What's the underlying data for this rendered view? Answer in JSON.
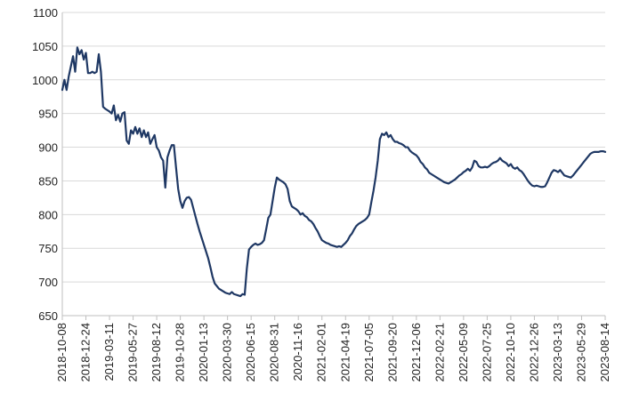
{
  "chart_data": {
    "type": "line",
    "title": "",
    "xlabel": "",
    "ylabel": "",
    "ylim": [
      650,
      1100
    ],
    "yticks": [
      650,
      700,
      750,
      800,
      850,
      900,
      950,
      1000,
      1050,
      1100
    ],
    "xlim": [
      "2018-10-08",
      "2023-08-14"
    ],
    "xticks": [
      "2018-10-08",
      "2018-12-24",
      "2019-03-11",
      "2019-05-27",
      "2019-08-12",
      "2019-10-28",
      "2020-01-13",
      "2020-03-30",
      "2020-06-15",
      "2020-08-31",
      "2020-11-16",
      "2021-02-01",
      "2021-04-19",
      "2021-07-05",
      "2021-09-20",
      "2021-12-06",
      "2022-02-21",
      "2022-05-09",
      "2022-07-25",
      "2022-10-10",
      "2022-12-26",
      "2023-03-13",
      "2023-05-29",
      "2023-08-14"
    ],
    "grid": {
      "horizontal": true,
      "vertical": false
    },
    "series": [
      {
        "color": "#1f3864",
        "points": [
          [
            "2018-10-08",
            985
          ],
          [
            "2018-10-15",
            1000
          ],
          [
            "2018-10-22",
            985
          ],
          [
            "2018-10-29",
            1005
          ],
          [
            "2018-11-05",
            1020
          ],
          [
            "2018-11-12",
            1035
          ],
          [
            "2018-11-19",
            1012
          ],
          [
            "2018-11-26",
            1048
          ],
          [
            "2018-12-03",
            1038
          ],
          [
            "2018-12-10",
            1044
          ],
          [
            "2018-12-17",
            1030
          ],
          [
            "2018-12-24",
            1040
          ],
          [
            "2018-12-31",
            1010
          ],
          [
            "2019-01-07",
            1010
          ],
          [
            "2019-01-14",
            1012
          ],
          [
            "2019-01-21",
            1010
          ],
          [
            "2019-01-28",
            1012
          ],
          [
            "2019-02-04",
            1038
          ],
          [
            "2019-02-11",
            1012
          ],
          [
            "2019-02-18",
            960
          ],
          [
            "2019-02-25",
            957
          ],
          [
            "2019-03-04",
            955
          ],
          [
            "2019-03-11",
            953
          ],
          [
            "2019-03-18",
            950
          ],
          [
            "2019-03-25",
            962
          ],
          [
            "2019-04-01",
            940
          ],
          [
            "2019-04-08",
            948
          ],
          [
            "2019-04-15",
            938
          ],
          [
            "2019-04-22",
            950
          ],
          [
            "2019-04-29",
            952
          ],
          [
            "2019-05-06",
            910
          ],
          [
            "2019-05-13",
            905
          ],
          [
            "2019-05-20",
            925
          ],
          [
            "2019-05-27",
            920
          ],
          [
            "2019-06-03",
            930
          ],
          [
            "2019-06-10",
            920
          ],
          [
            "2019-06-17",
            928
          ],
          [
            "2019-06-24",
            915
          ],
          [
            "2019-07-01",
            925
          ],
          [
            "2019-07-08",
            915
          ],
          [
            "2019-07-15",
            922
          ],
          [
            "2019-07-22",
            905
          ],
          [
            "2019-07-29",
            912
          ],
          [
            "2019-08-05",
            918
          ],
          [
            "2019-08-12",
            900
          ],
          [
            "2019-08-19",
            895
          ],
          [
            "2019-08-26",
            885
          ],
          [
            "2019-09-02",
            880
          ],
          [
            "2019-09-09",
            840
          ],
          [
            "2019-09-16",
            885
          ],
          [
            "2019-09-23",
            895
          ],
          [
            "2019-09-30",
            903
          ],
          [
            "2019-10-07",
            903
          ],
          [
            "2019-10-14",
            870
          ],
          [
            "2019-10-21",
            838
          ],
          [
            "2019-10-28",
            820
          ],
          [
            "2019-11-04",
            810
          ],
          [
            "2019-11-11",
            820
          ],
          [
            "2019-11-18",
            825
          ],
          [
            "2019-11-25",
            826
          ],
          [
            "2019-12-02",
            822
          ],
          [
            "2019-12-09",
            810
          ],
          [
            "2019-12-16",
            798
          ],
          [
            "2019-12-23",
            786
          ],
          [
            "2019-12-30",
            775
          ],
          [
            "2020-01-06",
            765
          ],
          [
            "2020-01-13",
            755
          ],
          [
            "2020-01-20",
            745
          ],
          [
            "2020-01-27",
            735
          ],
          [
            "2020-02-03",
            722
          ],
          [
            "2020-02-10",
            708
          ],
          [
            "2020-02-17",
            698
          ],
          [
            "2020-02-24",
            694
          ],
          [
            "2020-03-02",
            690
          ],
          [
            "2020-03-09",
            688
          ],
          [
            "2020-03-16",
            686
          ],
          [
            "2020-03-23",
            684
          ],
          [
            "2020-03-30",
            683
          ],
          [
            "2020-04-06",
            682
          ],
          [
            "2020-04-13",
            685
          ],
          [
            "2020-04-20",
            682
          ],
          [
            "2020-04-27",
            681
          ],
          [
            "2020-05-04",
            680
          ],
          [
            "2020-05-11",
            679
          ],
          [
            "2020-05-18",
            682
          ],
          [
            "2020-05-25",
            681
          ],
          [
            "2020-06-01",
            720
          ],
          [
            "2020-06-08",
            748
          ],
          [
            "2020-06-15",
            752
          ],
          [
            "2020-06-22",
            755
          ],
          [
            "2020-06-29",
            757
          ],
          [
            "2020-07-06",
            755
          ],
          [
            "2020-07-13",
            756
          ],
          [
            "2020-07-20",
            758
          ],
          [
            "2020-07-27",
            762
          ],
          [
            "2020-08-03",
            778
          ],
          [
            "2020-08-10",
            795
          ],
          [
            "2020-08-17",
            800
          ],
          [
            "2020-08-24",
            820
          ],
          [
            "2020-08-31",
            840
          ],
          [
            "2020-09-07",
            855
          ],
          [
            "2020-09-14",
            852
          ],
          [
            "2020-09-21",
            850
          ],
          [
            "2020-09-28",
            848
          ],
          [
            "2020-10-05",
            845
          ],
          [
            "2020-10-12",
            838
          ],
          [
            "2020-10-19",
            820
          ],
          [
            "2020-10-26",
            812
          ],
          [
            "2020-11-02",
            810
          ],
          [
            "2020-11-09",
            808
          ],
          [
            "2020-11-16",
            805
          ],
          [
            "2020-11-23",
            800
          ],
          [
            "2020-11-30",
            802
          ],
          [
            "2020-12-07",
            798
          ],
          [
            "2020-12-14",
            796
          ],
          [
            "2020-12-21",
            792
          ],
          [
            "2020-12-28",
            790
          ],
          [
            "2021-01-04",
            786
          ],
          [
            "2021-01-11",
            780
          ],
          [
            "2021-01-18",
            775
          ],
          [
            "2021-01-25",
            768
          ],
          [
            "2021-02-01",
            762
          ],
          [
            "2021-02-08",
            760
          ],
          [
            "2021-02-15",
            758
          ],
          [
            "2021-02-22",
            757
          ],
          [
            "2021-03-01",
            755
          ],
          [
            "2021-03-08",
            754
          ],
          [
            "2021-03-15",
            753
          ],
          [
            "2021-03-22",
            752
          ],
          [
            "2021-03-29",
            753
          ],
          [
            "2021-04-05",
            752
          ],
          [
            "2021-04-12",
            755
          ],
          [
            "2021-04-19",
            758
          ],
          [
            "2021-04-26",
            762
          ],
          [
            "2021-05-03",
            768
          ],
          [
            "2021-05-10",
            772
          ],
          [
            "2021-05-17",
            778
          ],
          [
            "2021-05-24",
            783
          ],
          [
            "2021-05-31",
            786
          ],
          [
            "2021-06-07",
            788
          ],
          [
            "2021-06-14",
            790
          ],
          [
            "2021-06-21",
            792
          ],
          [
            "2021-06-28",
            795
          ],
          [
            "2021-07-05",
            800
          ],
          [
            "2021-07-12",
            818
          ],
          [
            "2021-07-19",
            835
          ],
          [
            "2021-07-26",
            855
          ],
          [
            "2021-08-02",
            880
          ],
          [
            "2021-08-09",
            912
          ],
          [
            "2021-08-16",
            920
          ],
          [
            "2021-08-23",
            918
          ],
          [
            "2021-08-30",
            922
          ],
          [
            "2021-09-06",
            915
          ],
          [
            "2021-09-13",
            918
          ],
          [
            "2021-09-20",
            912
          ],
          [
            "2021-09-27",
            908
          ],
          [
            "2021-10-04",
            908
          ],
          [
            "2021-10-11",
            906
          ],
          [
            "2021-10-18",
            905
          ],
          [
            "2021-10-25",
            903
          ],
          [
            "2021-11-01",
            900
          ],
          [
            "2021-11-08",
            900
          ],
          [
            "2021-11-15",
            895
          ],
          [
            "2021-11-22",
            892
          ],
          [
            "2021-11-29",
            890
          ],
          [
            "2021-12-06",
            888
          ],
          [
            "2021-12-13",
            884
          ],
          [
            "2021-12-20",
            878
          ],
          [
            "2021-12-27",
            875
          ],
          [
            "2022-01-03",
            870
          ],
          [
            "2022-01-10",
            867
          ],
          [
            "2022-01-17",
            862
          ],
          [
            "2022-01-24",
            860
          ],
          [
            "2022-01-31",
            858
          ],
          [
            "2022-02-07",
            856
          ],
          [
            "2022-02-14",
            854
          ],
          [
            "2022-02-21",
            852
          ],
          [
            "2022-02-28",
            850
          ],
          [
            "2022-03-07",
            848
          ],
          [
            "2022-03-14",
            847
          ],
          [
            "2022-03-21",
            846
          ],
          [
            "2022-03-28",
            848
          ],
          [
            "2022-04-04",
            850
          ],
          [
            "2022-04-11",
            852
          ],
          [
            "2022-04-18",
            855
          ],
          [
            "2022-04-25",
            858
          ],
          [
            "2022-05-02",
            860
          ],
          [
            "2022-05-09",
            863
          ],
          [
            "2022-05-16",
            865
          ],
          [
            "2022-05-23",
            868
          ],
          [
            "2022-05-30",
            865
          ],
          [
            "2022-06-06",
            870
          ],
          [
            "2022-06-13",
            880
          ],
          [
            "2022-06-20",
            878
          ],
          [
            "2022-06-27",
            872
          ],
          [
            "2022-07-04",
            870
          ],
          [
            "2022-07-11",
            870
          ],
          [
            "2022-07-18",
            871
          ],
          [
            "2022-07-25",
            870
          ],
          [
            "2022-08-01",
            872
          ],
          [
            "2022-08-08",
            875
          ],
          [
            "2022-08-15",
            877
          ],
          [
            "2022-08-22",
            878
          ],
          [
            "2022-08-29",
            880
          ],
          [
            "2022-09-05",
            884
          ],
          [
            "2022-09-12",
            880
          ],
          [
            "2022-09-19",
            878
          ],
          [
            "2022-09-26",
            876
          ],
          [
            "2022-10-03",
            872
          ],
          [
            "2022-10-10",
            875
          ],
          [
            "2022-10-17",
            870
          ],
          [
            "2022-10-24",
            868
          ],
          [
            "2022-10-31",
            870
          ],
          [
            "2022-11-07",
            866
          ],
          [
            "2022-11-14",
            864
          ],
          [
            "2022-11-21",
            860
          ],
          [
            "2022-11-28",
            855
          ],
          [
            "2022-12-05",
            850
          ],
          [
            "2022-12-12",
            846
          ],
          [
            "2022-12-19",
            843
          ],
          [
            "2022-12-26",
            842
          ],
          [
            "2023-01-02",
            843
          ],
          [
            "2023-01-09",
            842
          ],
          [
            "2023-01-16",
            841
          ],
          [
            "2023-01-23",
            841
          ],
          [
            "2023-01-30",
            842
          ],
          [
            "2023-02-06",
            848
          ],
          [
            "2023-02-13",
            855
          ],
          [
            "2023-02-20",
            862
          ],
          [
            "2023-02-27",
            866
          ],
          [
            "2023-03-06",
            865
          ],
          [
            "2023-03-13",
            863
          ],
          [
            "2023-03-20",
            866
          ],
          [
            "2023-03-27",
            862
          ],
          [
            "2023-04-03",
            858
          ],
          [
            "2023-04-10",
            857
          ],
          [
            "2023-04-17",
            856
          ],
          [
            "2023-04-24",
            855
          ],
          [
            "2023-05-01",
            858
          ],
          [
            "2023-05-08",
            862
          ],
          [
            "2023-05-15",
            866
          ],
          [
            "2023-05-22",
            870
          ],
          [
            "2023-05-29",
            874
          ],
          [
            "2023-06-05",
            878
          ],
          [
            "2023-06-12",
            882
          ],
          [
            "2023-06-19",
            886
          ],
          [
            "2023-06-26",
            890
          ],
          [
            "2023-07-03",
            892
          ],
          [
            "2023-07-10",
            893
          ],
          [
            "2023-07-17",
            893
          ],
          [
            "2023-07-24",
            893
          ],
          [
            "2023-07-31",
            894
          ],
          [
            "2023-08-07",
            894
          ],
          [
            "2023-08-14",
            893
          ]
        ]
      }
    ]
  }
}
